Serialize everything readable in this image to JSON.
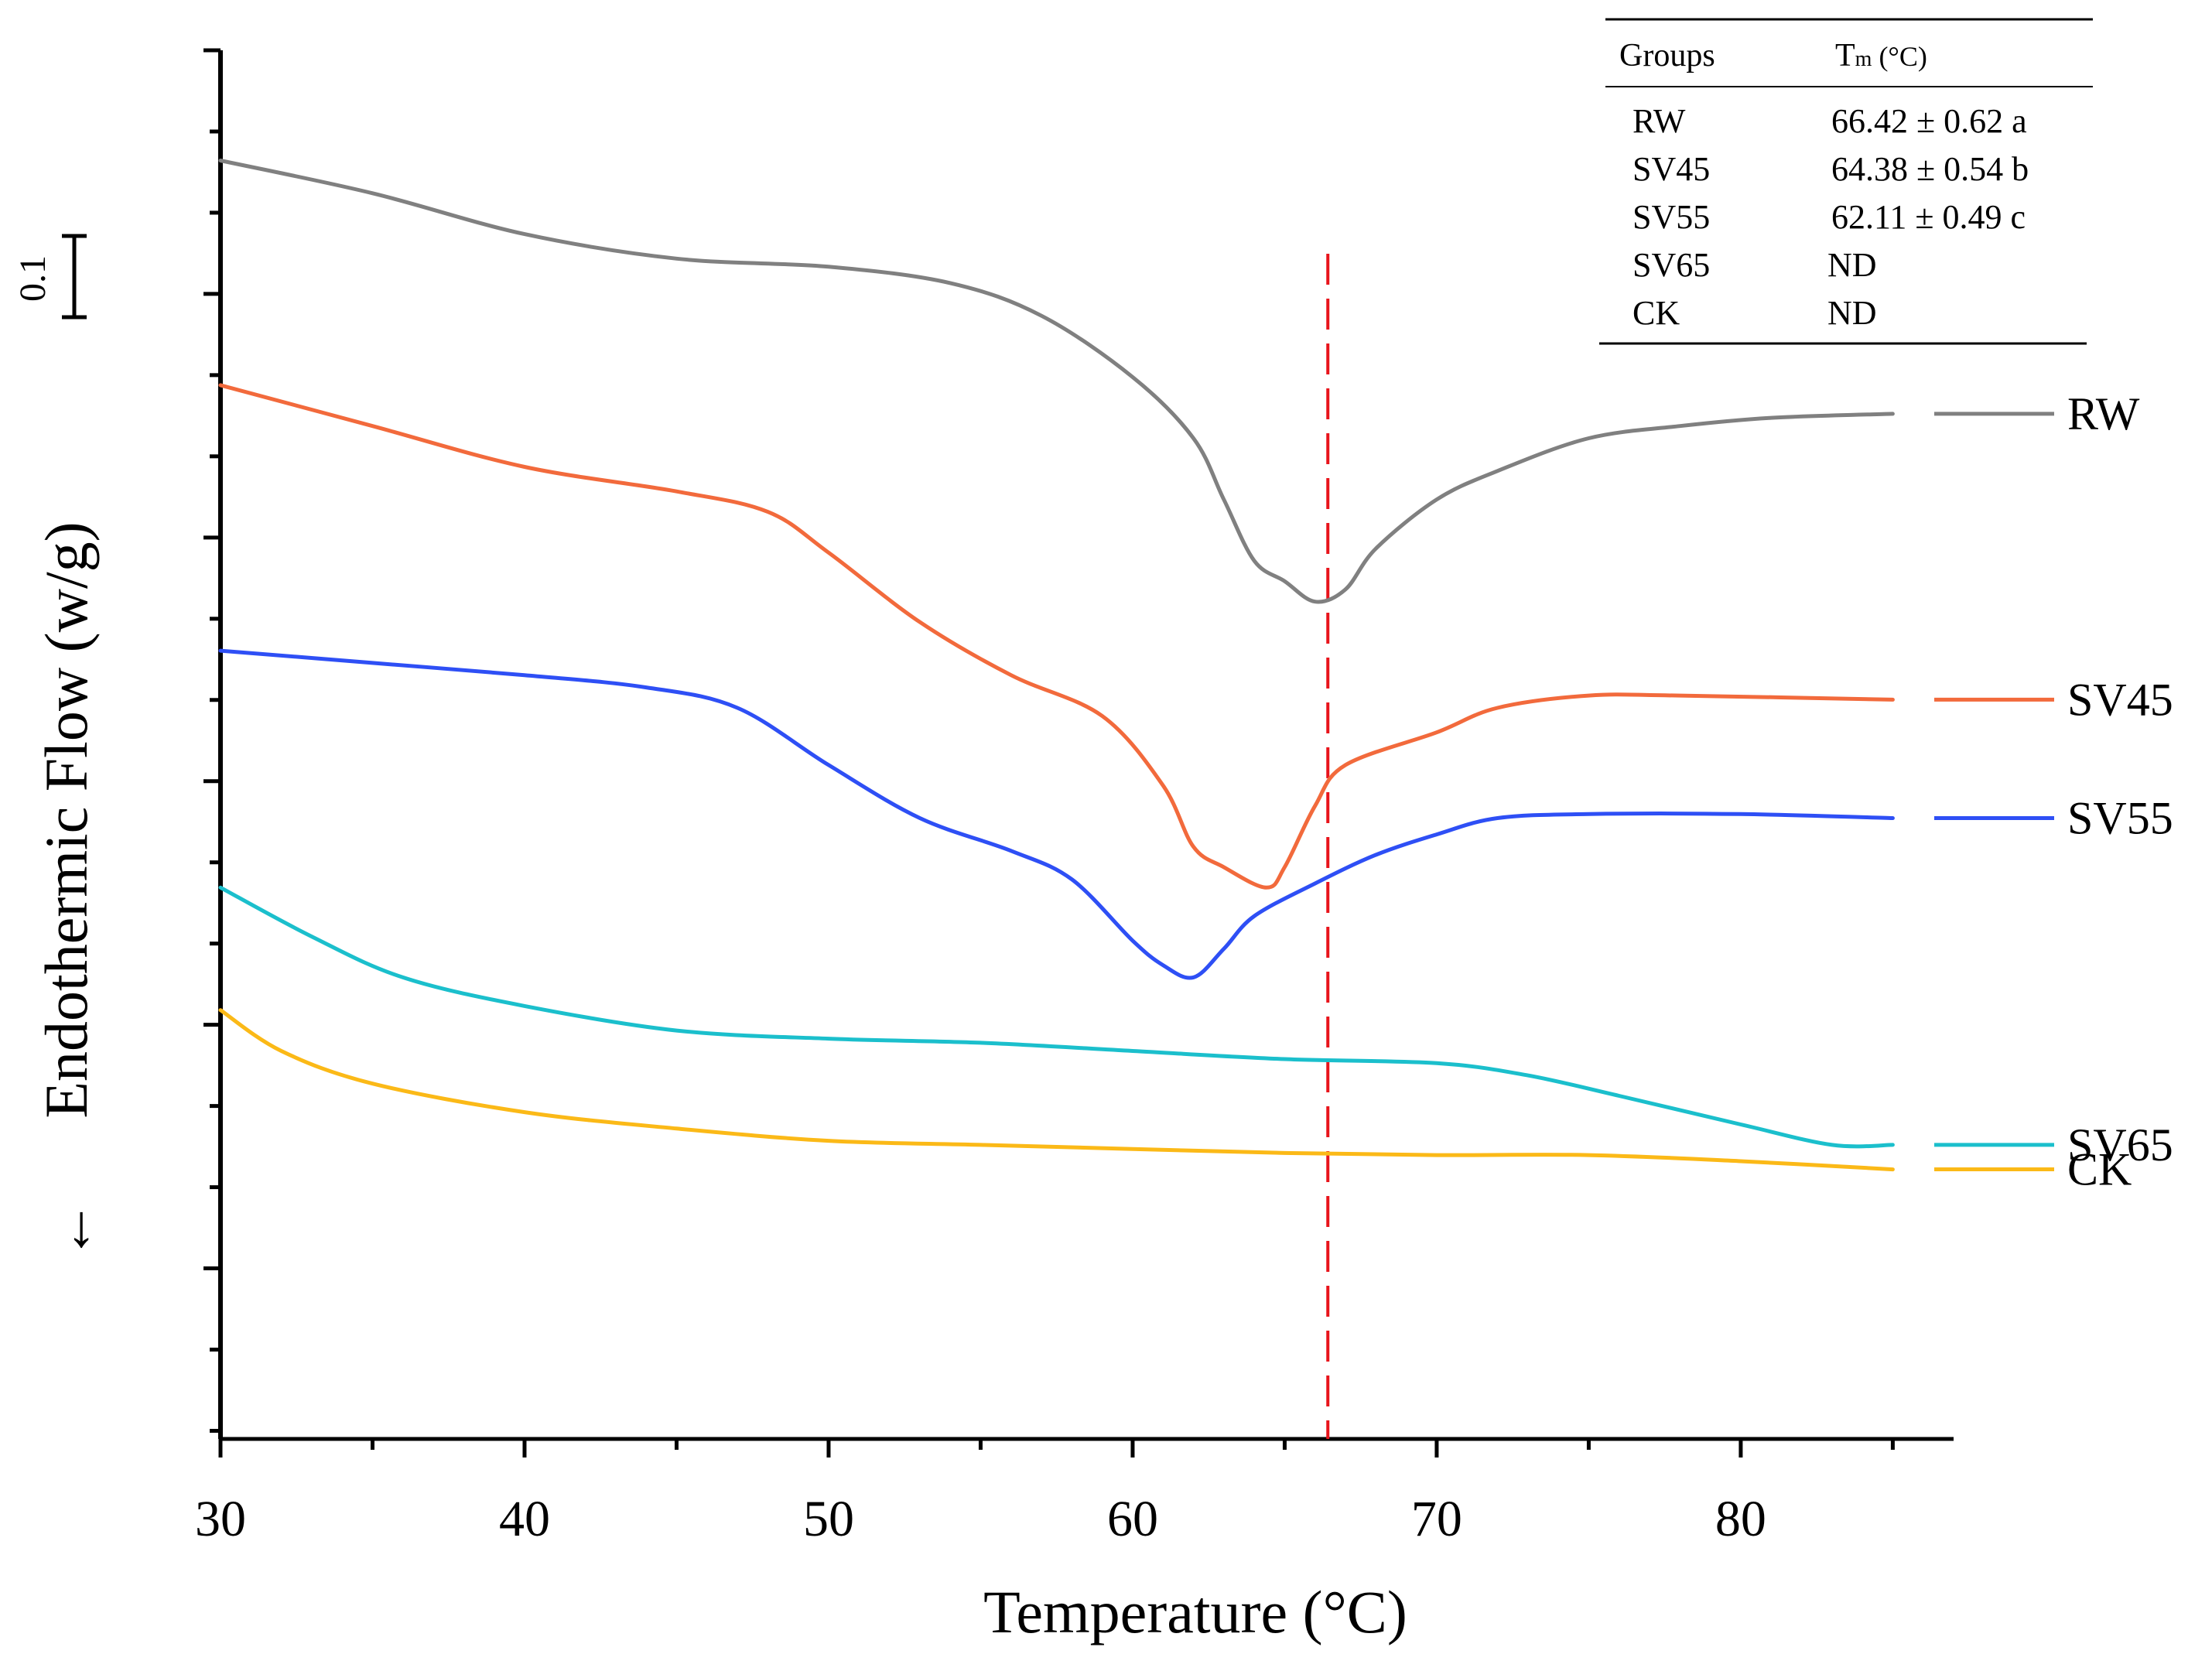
{
  "chart_data": {
    "type": "line",
    "title": "",
    "xlabel": "Temperature (°C)",
    "ylabel": "Endothermic Flow (w/g)",
    "ylabel_arrow": "←",
    "xlim": [
      30,
      87
    ],
    "x_ticks": [
      30,
      40,
      50,
      60,
      70,
      80
    ],
    "tick_labels": [
      "30",
      "40",
      "50",
      "60",
      "70",
      "80"
    ],
    "scale_bar_label": "0.1",
    "ylim": [
      -1.85,
      1.55
    ],
    "grid": false,
    "reference_line": {
      "x": 66.42,
      "color": "#e8141b",
      "style": "dashed"
    },
    "legend_placement": "right",
    "series": [
      {
        "name": "RW",
        "color": "#808080",
        "points": [
          [
            30,
            1.28
          ],
          [
            35,
            1.2
          ],
          [
            40,
            1.1
          ],
          [
            45,
            1.04
          ],
          [
            50,
            1.02
          ],
          [
            54,
            0.98
          ],
          [
            57,
            0.9
          ],
          [
            60,
            0.75
          ],
          [
            62,
            0.6
          ],
          [
            63,
            0.45
          ],
          [
            64,
            0.3
          ],
          [
            65,
            0.25
          ],
          [
            66,
            0.2
          ],
          [
            67,
            0.23
          ],
          [
            68,
            0.33
          ],
          [
            70,
            0.45
          ],
          [
            72,
            0.52
          ],
          [
            75,
            0.6
          ],
          [
            78,
            0.63
          ],
          [
            81,
            0.65
          ],
          [
            85,
            0.66
          ]
        ]
      },
      {
        "name": "SV45",
        "color": "#f26a3c",
        "points": [
          [
            30,
            0.73
          ],
          [
            35,
            0.63
          ],
          [
            40,
            0.53
          ],
          [
            45,
            0.47
          ],
          [
            48,
            0.42
          ],
          [
            50,
            0.32
          ],
          [
            53,
            0.15
          ],
          [
            56,
            0.02
          ],
          [
            59,
            -0.08
          ],
          [
            61,
            -0.25
          ],
          [
            62,
            -0.4
          ],
          [
            63,
            -0.45
          ],
          [
            64.4,
            -0.5
          ],
          [
            65,
            -0.45
          ],
          [
            66,
            -0.3
          ],
          [
            67,
            -0.2
          ],
          [
            70,
            -0.12
          ],
          [
            72,
            -0.06
          ],
          [
            75,
            -0.03
          ],
          [
            78,
            -0.03
          ],
          [
            85,
            -0.04
          ]
        ]
      },
      {
        "name": "SV55",
        "color": "#2e4ff5",
        "points": [
          [
            30,
            0.08
          ],
          [
            35,
            0.05
          ],
          [
            40,
            0.02
          ],
          [
            44,
            -0.01
          ],
          [
            47,
            -0.06
          ],
          [
            50,
            -0.2
          ],
          [
            53,
            -0.33
          ],
          [
            56,
            -0.41
          ],
          [
            58,
            -0.48
          ],
          [
            60,
            -0.63
          ],
          [
            61,
            -0.69
          ],
          [
            62,
            -0.72
          ],
          [
            63,
            -0.65
          ],
          [
            64,
            -0.57
          ],
          [
            66,
            -0.49
          ],
          [
            68,
            -0.42
          ],
          [
            70,
            -0.37
          ],
          [
            72,
            -0.33
          ],
          [
            75,
            -0.32
          ],
          [
            80,
            -0.32
          ],
          [
            85,
            -0.33
          ]
        ]
      },
      {
        "name": "SV65",
        "color": "#1bbfcc",
        "points": [
          [
            30,
            -0.5
          ],
          [
            33,
            -0.62
          ],
          [
            36,
            -0.72
          ],
          [
            40,
            -0.79
          ],
          [
            45,
            -0.85
          ],
          [
            50,
            -0.87
          ],
          [
            55,
            -0.88
          ],
          [
            60,
            -0.9
          ],
          [
            65,
            -0.92
          ],
          [
            70,
            -0.93
          ],
          [
            73,
            -0.96
          ],
          [
            76,
            -1.01
          ],
          [
            80,
            -1.08
          ],
          [
            83,
            -1.13
          ],
          [
            85,
            -1.13
          ]
        ]
      },
      {
        "name": "CK",
        "color": "#fbb917",
        "points": [
          [
            30,
            -0.8
          ],
          [
            32,
            -0.9
          ],
          [
            35,
            -0.98
          ],
          [
            40,
            -1.05
          ],
          [
            45,
            -1.09
          ],
          [
            50,
            -1.12
          ],
          [
            55,
            -1.13
          ],
          [
            60,
            -1.14
          ],
          [
            65,
            -1.15
          ],
          [
            70,
            -1.155
          ],
          [
            75,
            -1.155
          ],
          [
            80,
            -1.17
          ],
          [
            85,
            -1.19
          ]
        ]
      }
    ],
    "table": {
      "headers": [
        "Groups",
        "T",
        "m",
        " (°C)"
      ],
      "rows": [
        [
          "RW",
          "66.42 ± 0.62 a"
        ],
        [
          "SV45",
          "64.38 ± 0.54 b"
        ],
        [
          "SV55",
          "62.11 ± 0.49 c"
        ],
        [
          "SV65",
          "ND"
        ],
        [
          "CK",
          "ND"
        ]
      ]
    }
  }
}
